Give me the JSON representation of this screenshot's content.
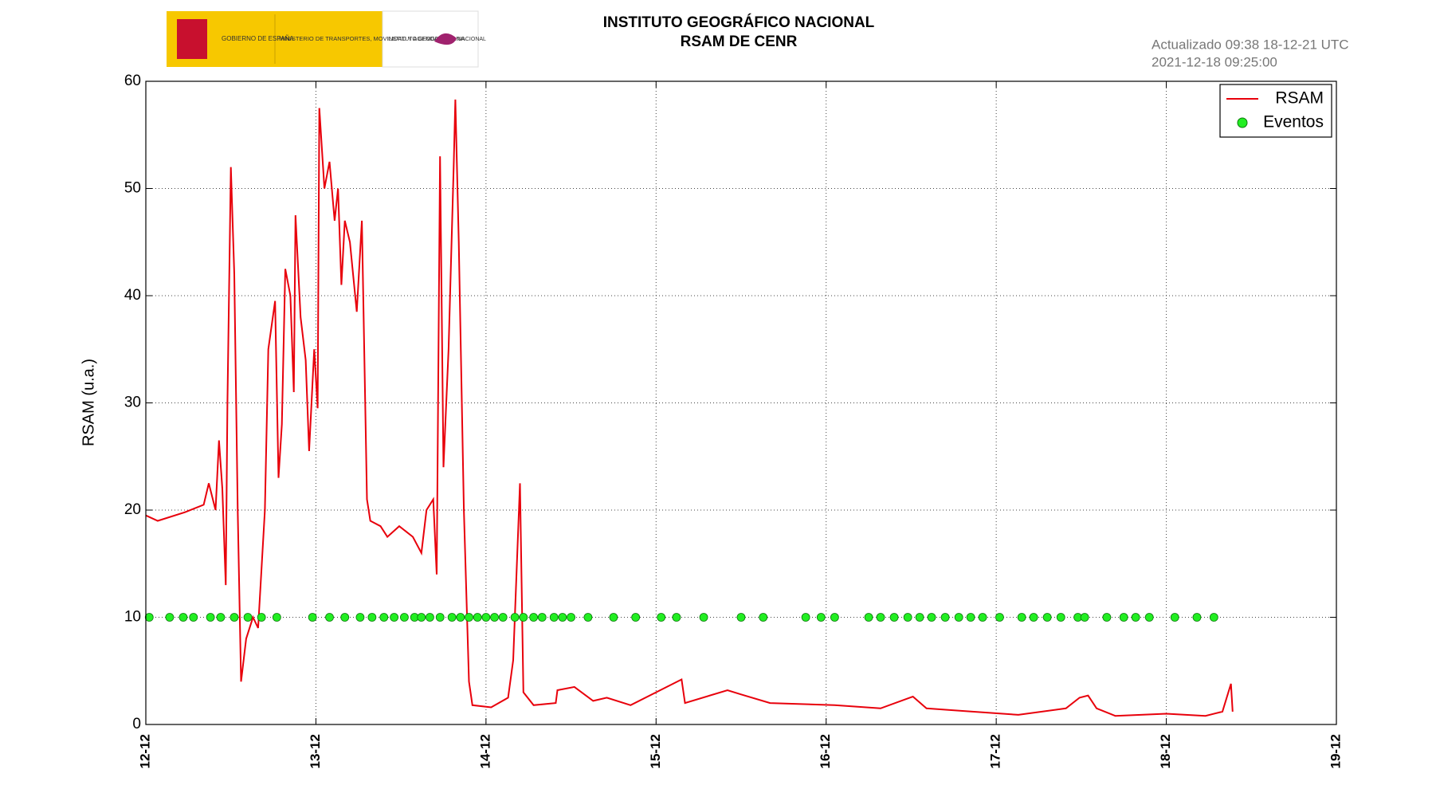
{
  "header": {
    "logo_texts": [
      "GOBIERNO DE ESPAÑA",
      "MINISTERIO DE TRANSPORTES, MOVILIDAD Y AGENDA URBANA",
      "INSTITUTO GEOGRÁFICO NACIONAL"
    ],
    "updated": "Actualizado 09:38 18-12-21 UTC",
    "timestamp": "2021-12-18 09:25:00"
  },
  "chart_data": {
    "type": "line",
    "title": "INSTITUTO GEOGRÁFICO NACIONAL",
    "subtitle": "RSAM DE CENR",
    "y_label": "RSAM (u.a.)",
    "xlim": [
      12,
      19
    ],
    "xticks": [
      {
        "value": 12,
        "label": "12-12"
      },
      {
        "value": 13,
        "label": "13-12"
      },
      {
        "value": 14,
        "label": "14-12"
      },
      {
        "value": 15,
        "label": "15-12"
      },
      {
        "value": 16,
        "label": "16-12"
      },
      {
        "value": 17,
        "label": "17-12"
      },
      {
        "value": 18,
        "label": "18-12"
      },
      {
        "value": 19,
        "label": "19-12"
      }
    ],
    "ylim": [
      0,
      60
    ],
    "yticks": [
      0,
      10,
      20,
      30,
      40,
      50,
      60
    ],
    "grid": true,
    "legend": "top-right",
    "series": [
      {
        "name": "RSAM",
        "type": "line",
        "color": "#e8000b",
        "x": [
          12.0,
          12.07,
          12.23,
          12.34,
          12.37,
          12.41,
          12.43,
          12.45,
          12.47,
          12.48,
          12.5,
          12.52,
          12.54,
          12.56,
          12.59,
          12.63,
          12.66,
          12.7,
          12.72,
          12.76,
          12.78,
          12.8,
          12.82,
          12.85,
          12.87,
          12.88,
          12.91,
          12.94,
          12.96,
          12.99,
          13.01,
          13.02,
          13.05,
          13.08,
          13.11,
          13.13,
          13.15,
          13.17,
          13.2,
          13.24,
          13.27,
          13.3,
          13.32,
          13.38,
          13.42,
          13.49,
          13.57,
          13.62,
          13.65,
          13.69,
          13.71,
          13.73,
          13.75,
          13.78,
          13.81,
          13.82,
          13.84,
          13.87,
          13.9,
          13.92,
          14.03,
          14.13,
          14.16,
          14.2,
          14.22,
          14.28,
          14.41,
          14.42,
          14.52,
          14.63,
          14.71,
          14.85,
          15.15,
          15.17,
          15.42,
          15.5,
          15.67,
          16.05,
          16.32,
          16.51,
          16.59,
          16.86,
          17.13,
          17.41,
          17.49,
          17.54,
          17.59,
          17.7,
          18.0,
          18.23,
          18.33,
          18.38,
          18.39
        ],
        "values": [
          19.5,
          19,
          19.8,
          20.5,
          22.5,
          20,
          26.5,
          22,
          13,
          30,
          52,
          42,
          20,
          4,
          8,
          10,
          9,
          20,
          35,
          39.5,
          23,
          28,
          42.5,
          40,
          31,
          47.5,
          38,
          34,
          25.5,
          35,
          29.5,
          57.5,
          50,
          52.5,
          47,
          50,
          41,
          47,
          45,
          38.5,
          47,
          21,
          19,
          18.5,
          17.5,
          18.5,
          17.5,
          16,
          20,
          21,
          14,
          53,
          24,
          35,
          52,
          58.3,
          45,
          20,
          4,
          1.8,
          1.6,
          2.5,
          6,
          22.5,
          3,
          1.8,
          2,
          3.2,
          3.5,
          2.2,
          2.5,
          1.8,
          4.2,
          2,
          3.2,
          2.8,
          2,
          1.8,
          1.5,
          2.6,
          1.5,
          1.2,
          0.9,
          1.5,
          2.5,
          2.7,
          1.5,
          0.8,
          1.0,
          0.8,
          1.2,
          3.8,
          1.2
        ]
      },
      {
        "name": "Eventos",
        "type": "scatter",
        "color": "#22ee22",
        "x": [
          12.02,
          12.14,
          12.22,
          12.28,
          12.38,
          12.44,
          12.52,
          12.6,
          12.68,
          12.77,
          12.98,
          13.08,
          13.17,
          13.26,
          13.33,
          13.4,
          13.46,
          13.52,
          13.58,
          13.62,
          13.67,
          13.73,
          13.8,
          13.85,
          13.9,
          13.95,
          14.0,
          14.05,
          14.1,
          14.17,
          14.22,
          14.28,
          14.33,
          14.4,
          14.45,
          14.5,
          14.6,
          14.75,
          14.88,
          15.03,
          15.12,
          15.28,
          15.5,
          15.63,
          15.88,
          15.97,
          16.05,
          16.25,
          16.32,
          16.4,
          16.48,
          16.55,
          16.62,
          16.7,
          16.78,
          16.85,
          16.92,
          17.02,
          17.15,
          17.22,
          17.3,
          17.38,
          17.48,
          17.52,
          17.65,
          17.75,
          17.82,
          17.9,
          18.05,
          18.18,
          18.28
        ],
        "values": [
          10,
          10,
          10,
          10,
          10,
          10,
          10,
          10,
          10,
          10,
          10,
          10,
          10,
          10,
          10,
          10,
          10,
          10,
          10,
          10,
          10,
          10,
          10,
          10,
          10,
          10,
          10,
          10,
          10,
          10,
          10,
          10,
          10,
          10,
          10,
          10,
          10,
          10,
          10,
          10,
          10,
          10,
          10,
          10,
          10,
          10,
          10,
          10,
          10,
          10,
          10,
          10,
          10,
          10,
          10,
          10,
          10,
          10,
          10,
          10,
          10,
          10,
          10,
          10,
          10,
          10,
          10,
          10,
          10,
          10,
          10
        ]
      }
    ]
  }
}
